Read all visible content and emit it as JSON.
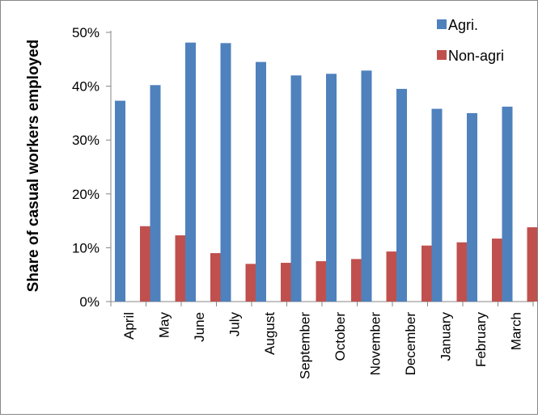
{
  "chart_data": {
    "type": "bar",
    "title": "",
    "xlabel": "",
    "ylabel": "Share of casual workers employed",
    "categories": [
      "April",
      "May",
      "June",
      "July",
      "August",
      "September",
      "October",
      "November",
      "December",
      "January",
      "February",
      "March"
    ],
    "series": [
      {
        "name": "Agri.",
        "color": "#4F81BD",
        "values": [
          37.3,
          40.2,
          48.1,
          48.0,
          44.5,
          42.0,
          42.3,
          42.9,
          39.5,
          35.8,
          35.0,
          36.2
        ]
      },
      {
        "name": "Non-agri",
        "color": "#C0504D",
        "values": [
          14.0,
          12.3,
          9.0,
          7.0,
          7.2,
          7.5,
          7.9,
          9.3,
          10.4,
          11.0,
          11.7,
          13.8
        ]
      }
    ],
    "ylim": [
      0,
      50
    ],
    "yticks": [
      0,
      10,
      20,
      30,
      40,
      50
    ],
    "ytick_labels": [
      "0%",
      "10%",
      "20%",
      "30%",
      "40%",
      "50%"
    ],
    "grid": false,
    "legend_position": "top-right"
  }
}
